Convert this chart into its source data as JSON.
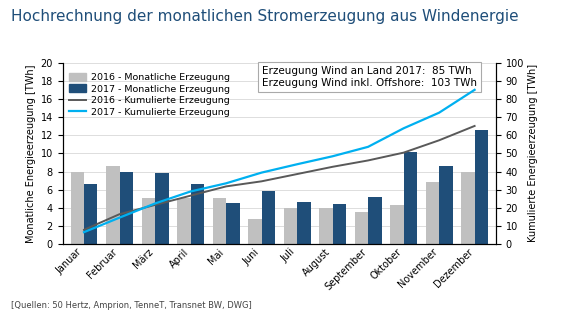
{
  "title": "Hochrechnung der monatlichen Stromerzeugung aus Windenergie",
  "months": [
    "Januar",
    "Februar",
    "März",
    "April",
    "Mai",
    "Juni",
    "Juli",
    "August",
    "September",
    "Oktober",
    "November",
    "Dezember"
  ],
  "bar_2016": [
    7.9,
    8.6,
    5.1,
    5.1,
    5.1,
    2.8,
    4.0,
    4.0,
    3.5,
    4.3,
    6.8,
    7.9
  ],
  "bar_2017": [
    6.6,
    8.0,
    7.8,
    6.6,
    4.5,
    5.9,
    4.6,
    4.4,
    5.2,
    10.2,
    8.6,
    12.6
  ],
  "cum_2016": [
    7.9,
    16.5,
    21.6,
    26.7,
    31.8,
    34.6,
    38.6,
    42.6,
    46.1,
    50.4,
    57.2,
    65.1
  ],
  "cum_2017": [
    6.6,
    14.6,
    22.4,
    29.0,
    33.5,
    39.4,
    44.0,
    48.4,
    53.6,
    63.8,
    72.4,
    85.0
  ],
  "bar_2016_color": "#c0c0c0",
  "bar_2017_color": "#1f4e79",
  "line_2016_color": "#595959",
  "line_2017_color": "#00b0f0",
  "ylabel_left": "Monatliche Energieerzeugung [TWh]",
  "ylabel_right": "Kumulierte Energieerzeugung [TWh]",
  "ylim_left": [
    0,
    20
  ],
  "ylim_right": [
    0,
    100
  ],
  "yticks_left": [
    0,
    2,
    4,
    6,
    8,
    10,
    12,
    14,
    16,
    18,
    20
  ],
  "yticks_right": [
    0,
    10,
    20,
    30,
    40,
    50,
    60,
    70,
    80,
    90,
    100
  ],
  "annotation_text": "Erzeugung Wind an Land 2017:  85 TWh\nErzeugung Wind inkl. Offshore:  103 TWh",
  "legend_labels": [
    "2016 - Monatliche Erzeugung",
    "2017 - Monatliche Erzeugung",
    "2016 - Kumulierte Erzeugung",
    "2017 - Kumulierte Erzeugung"
  ],
  "source_text": "[Quellen: 50 Hertz, Amprion, TenneT, Transnet BW, DWG]",
  "background_color": "#ffffff",
  "title_color": "#1f4e79",
  "title_fontsize": 11,
  "axis_fontsize": 7.0,
  "tick_fontsize": 7.0,
  "legend_fontsize": 6.8,
  "annotation_fontsize": 7.5
}
